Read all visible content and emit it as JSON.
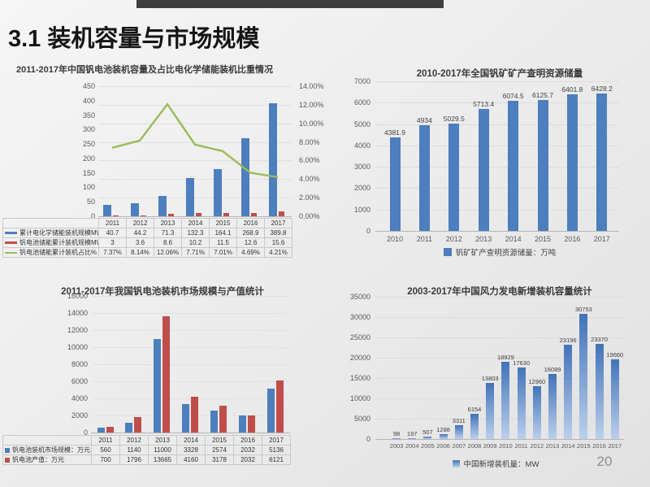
{
  "slide": {
    "title": "3.1 装机容量与市场规模",
    "page_number": "20"
  },
  "chart_data": [
    {
      "type": "bar+line",
      "title": "2011-2017年中国钒电池装机容量及占比电化学储能装机比重情况",
      "categories": [
        "2011",
        "2012",
        "2013",
        "2014",
        "2015",
        "2016",
        "2017"
      ],
      "series": [
        {
          "name": "累计电化学储能装机规模MW",
          "type": "bar",
          "color": "#4d7ebd",
          "values": [
            40.7,
            44.2,
            71.3,
            132.3,
            164.1,
            268.9,
            389.8
          ],
          "labels": [
            "40.7",
            "44.2",
            "71.3",
            "132.3",
            "164.1",
            "268.9",
            "389.8"
          ]
        },
        {
          "name": "钒电池储能累计装机规模MW",
          "type": "bar",
          "color": "#bf4e4a",
          "values": [
            3,
            3.6,
            8.6,
            10.2,
            11.5,
            12.6,
            15.6
          ],
          "labels": [
            "3",
            "3.6",
            "8.6",
            "10.2",
            "11.5",
            "12.6",
            "15.6"
          ]
        },
        {
          "name": "钒电池储能累计装机占比%",
          "type": "line",
          "color": "#9bbb59",
          "values": [
            7.37,
            8.14,
            12.06,
            7.71,
            7.01,
            4.69,
            4.21
          ],
          "labels": [
            "7.37%",
            "8.14%",
            "12.06%",
            "7.71%",
            "7.01%",
            "4.69%",
            "4.21%"
          ]
        }
      ],
      "left_axis": {
        "min": 0,
        "max": 450,
        "ticks": [
          "0",
          "50",
          "100",
          "150",
          "200",
          "250",
          "300",
          "350",
          "400",
          "450"
        ]
      },
      "right_axis": {
        "min": 0,
        "max": 14,
        "ticks": [
          "0.00%",
          "2.00%",
          "4.00%",
          "6.00%",
          "8.00%",
          "10.00%",
          "12.00%",
          "14.00%"
        ]
      },
      "legend_position": "table-left",
      "grid": "faint"
    },
    {
      "type": "bar",
      "title": "2010-2017年全国钒矿矿产查明资源储量",
      "categories": [
        "2010",
        "2011",
        "2012",
        "2013",
        "2014",
        "2015",
        "2016",
        "2017"
      ],
      "values": [
        4381.9,
        4934,
        5029.5,
        5713.4,
        6074.5,
        6125.7,
        6401.8,
        6428.2
      ],
      "labels": [
        "4381.9",
        "4934",
        "5029.5",
        "5713.4",
        "6074.5",
        "6125.7",
        "6401.8",
        "6428.2"
      ],
      "legend": "钒矿矿产查明资源储量：万吨",
      "color": "#4d7ebd",
      "y_axis": {
        "min": 0,
        "max": 7000,
        "ticks": [
          "0",
          "1000",
          "2000",
          "3000",
          "4000",
          "5000",
          "6000",
          "7000"
        ]
      },
      "legend_position": "bottom-center",
      "grid": "on"
    },
    {
      "type": "bar",
      "title": "2011-2017年我国钒电池装机市场规模与产值统计",
      "categories": [
        "2011",
        "2012",
        "2013",
        "2014",
        "2015",
        "2016",
        "2017"
      ],
      "series": [
        {
          "name": "钒电池装机市场规模：万元",
          "color": "#4d7ebd",
          "values": [
            560,
            1140,
            11000,
            3328,
            2574,
            2032,
            5136
          ],
          "labels": [
            "560",
            "1140",
            "11000",
            "3328",
            "2574",
            "2032",
            "5136"
          ]
        },
        {
          "name": "钒电池产值：万元",
          "color": "#bf4e4a",
          "values": [
            700,
            1796,
            13665,
            4160,
            3178,
            2032,
            6121
          ],
          "labels": [
            "700",
            "1796",
            "13665",
            "4160",
            "3178",
            "2032",
            "6121"
          ]
        }
      ],
      "y_axis": {
        "min": 0,
        "max": 16000,
        "ticks": [
          "0",
          "2000",
          "4000",
          "6000",
          "8000",
          "10000",
          "12000",
          "14000",
          "16000"
        ]
      },
      "legend_position": "table-left",
      "grid": "faint"
    },
    {
      "type": "bar",
      "title": "2003-2017年中国风力发电新增装机容量统计",
      "categories": [
        "2003",
        "2004",
        "2005",
        "2006",
        "2007",
        "2008",
        "2009",
        "2010",
        "2011",
        "2012",
        "2013",
        "2014",
        "2015",
        "2016",
        "2017"
      ],
      "values": [
        98,
        197,
        507,
        1288,
        3311,
        6154,
        13803,
        18929,
        17630,
        12960,
        16089,
        23196,
        30753,
        23370,
        19660
      ],
      "labels": [
        "98",
        "197",
        "507",
        "1288",
        "3311",
        "6154",
        "13803",
        "18929",
        "17630",
        "12960",
        "16089",
        "23196",
        "30753",
        "23370",
        "19660"
      ],
      "legend": "中国新增装机量：MW",
      "color_top": "#4273b8",
      "color_bottom": "#bdd0ec",
      "y_axis": {
        "min": 0,
        "max": 35000,
        "ticks": [
          "0",
          "5000",
          "10000",
          "15000",
          "20000",
          "25000",
          "30000",
          "35000"
        ]
      },
      "legend_position": "bottom-center",
      "grid": "on"
    }
  ]
}
